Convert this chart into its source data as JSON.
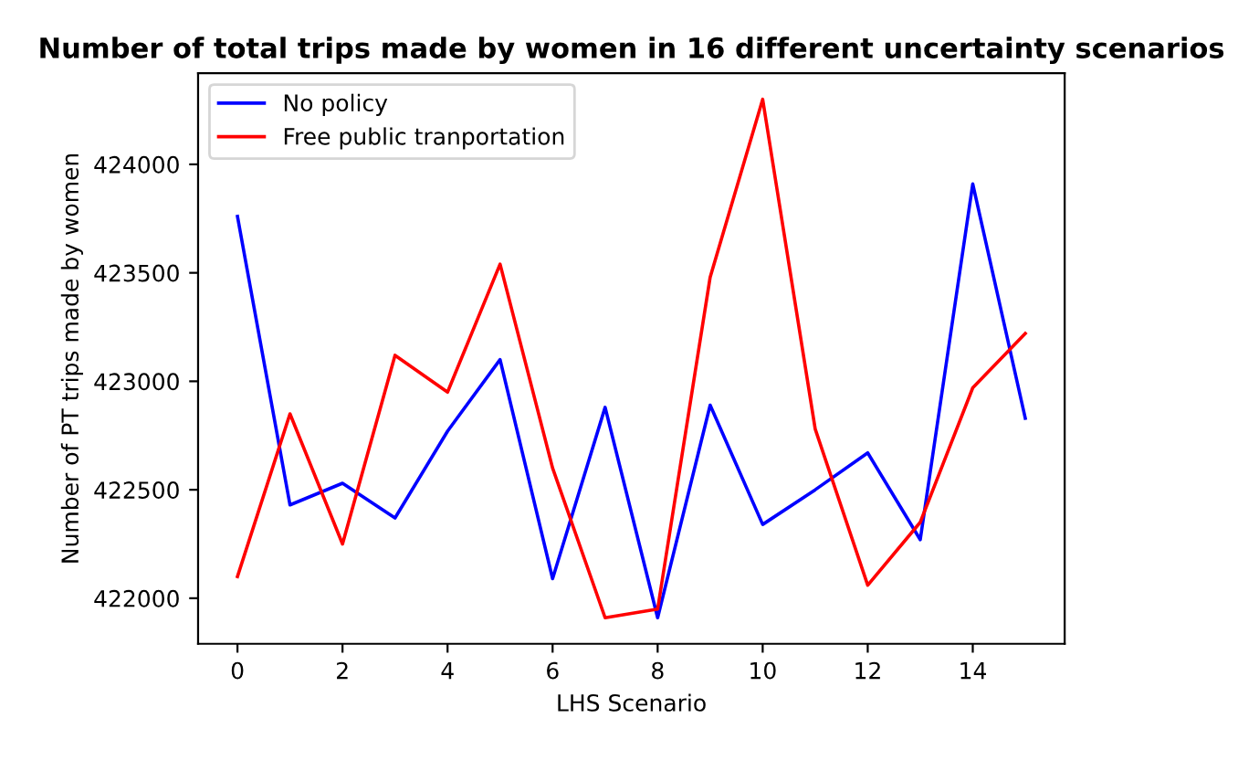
{
  "chart_data": {
    "type": "line",
    "title": "Number of total trips made by women in 16 different uncertainty scenarios",
    "xlabel": "LHS Scenario",
    "ylabel": "Number of PT trips made by women",
    "x": [
      0,
      1,
      2,
      3,
      4,
      5,
      6,
      7,
      8,
      9,
      10,
      11,
      12,
      13,
      14,
      15
    ],
    "series": [
      {
        "name": "No policy",
        "color": "#0000ff",
        "values": [
          423760,
          422430,
          422530,
          422370,
          422770,
          423100,
          422090,
          422880,
          421910,
          422890,
          422340,
          422500,
          422670,
          422270,
          423910,
          422830
        ]
      },
      {
        "name": "Free public tranportation",
        "color": "#ff0000",
        "values": [
          422100,
          422850,
          422250,
          423120,
          422950,
          423540,
          422600,
          421910,
          421950,
          423480,
          424300,
          422780,
          422060,
          422350,
          422970,
          423220
        ]
      }
    ],
    "xlim": [
      -0.75,
      15.75
    ],
    "xticks": [
      0,
      2,
      4,
      6,
      8,
      10,
      12,
      14
    ],
    "ylim": [
      421790,
      424420
    ],
    "yticks": [
      422000,
      422500,
      423000,
      423500,
      424000
    ],
    "grid": false,
    "legend": "top left"
  }
}
